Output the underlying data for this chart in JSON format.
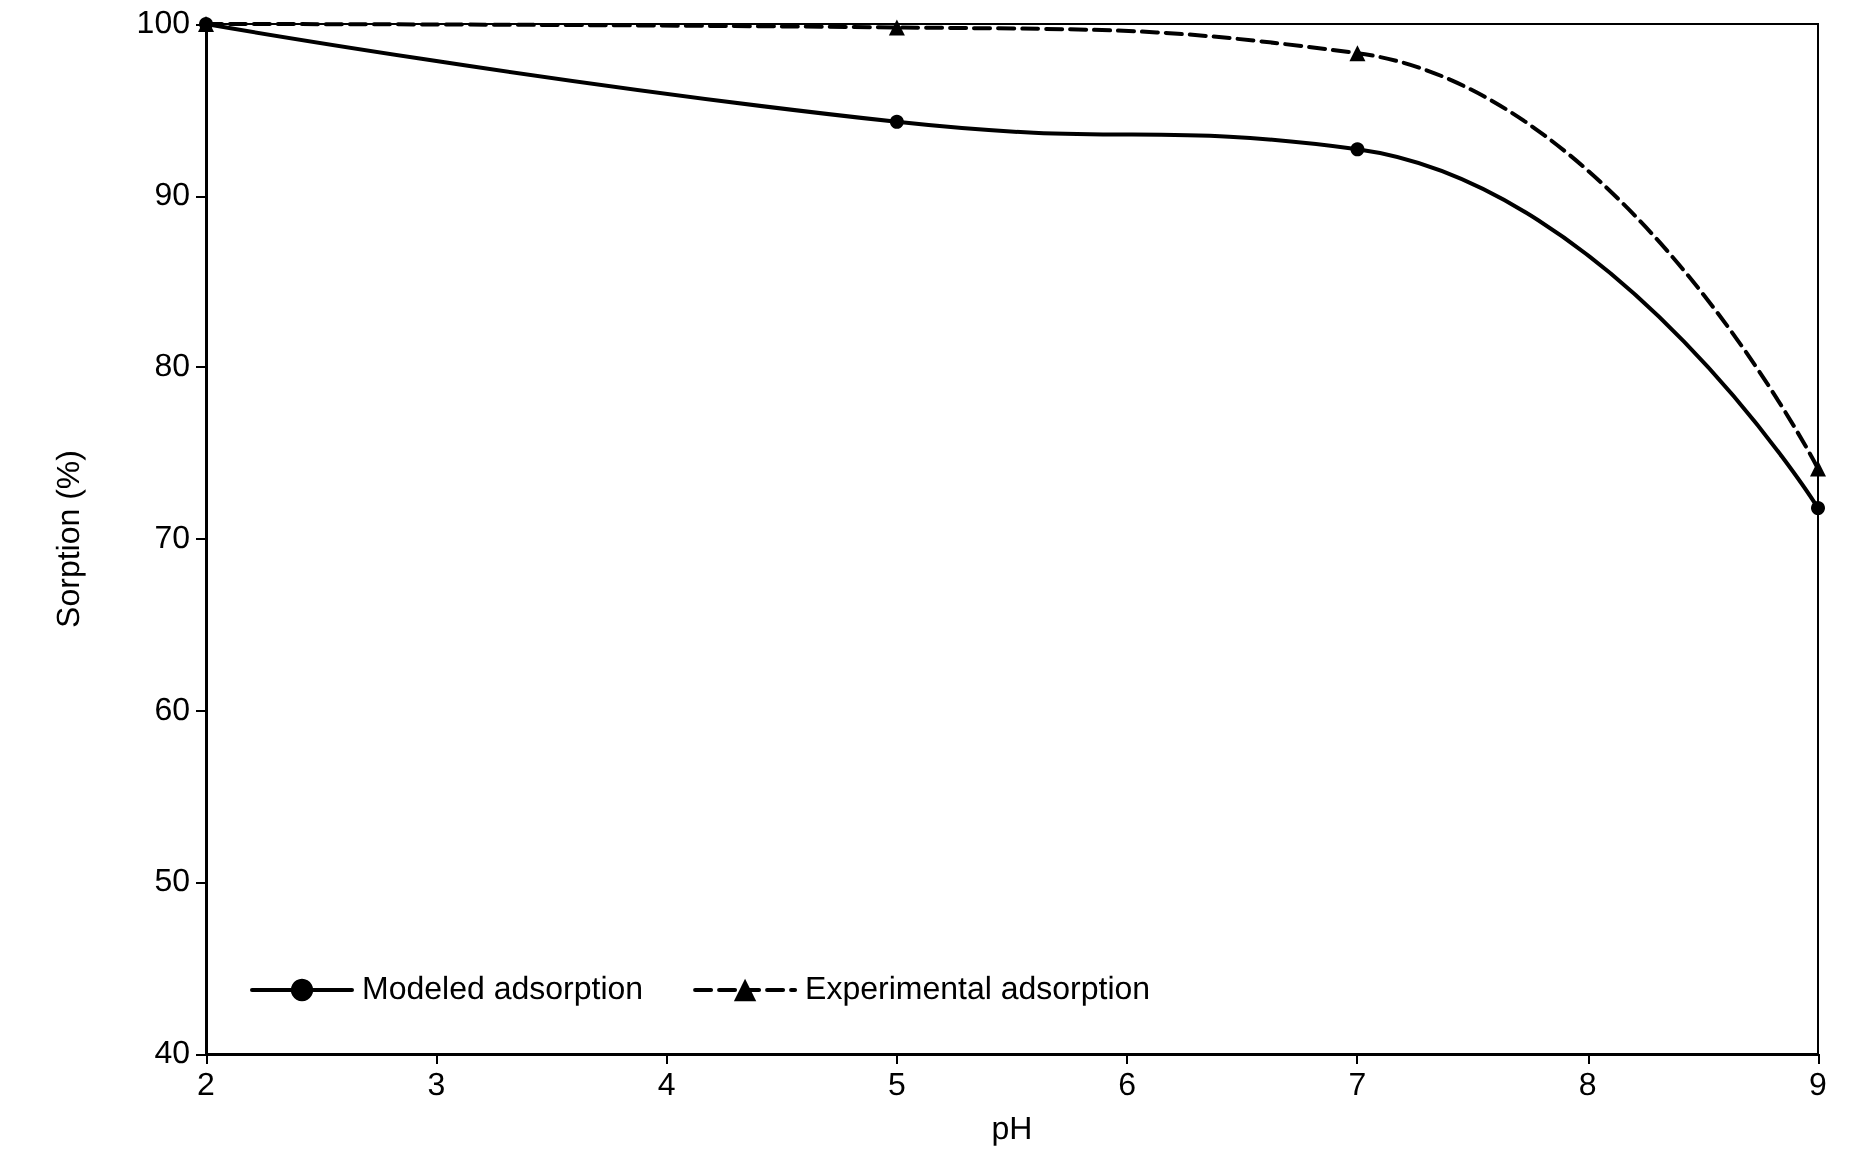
{
  "chart_data": {
    "type": "line",
    "xlabel": "pH",
    "ylabel": "Sorption (%)",
    "x": [
      2,
      5,
      7,
      9
    ],
    "series": [
      {
        "name": "Modeled adsorption",
        "color": "#000000",
        "values": [
          100,
          94.3,
          92.7,
          71.8
        ],
        "marker": "circle",
        "line_style": "solid"
      },
      {
        "name": "Experimental adsorption",
        "color": "#000000",
        "values": [
          100,
          99.8,
          98.3,
          74.1
        ],
        "marker": "triangle",
        "line_style": "dashed"
      }
    ],
    "xlim": [
      2,
      9
    ],
    "xticks": [
      2,
      3,
      4,
      5,
      6,
      7,
      8,
      9
    ],
    "ylim": [
      40,
      100
    ],
    "yticks": [
      40,
      50,
      60,
      70,
      80,
      90,
      100
    ],
    "grid": false,
    "legend": "bottom left"
  }
}
